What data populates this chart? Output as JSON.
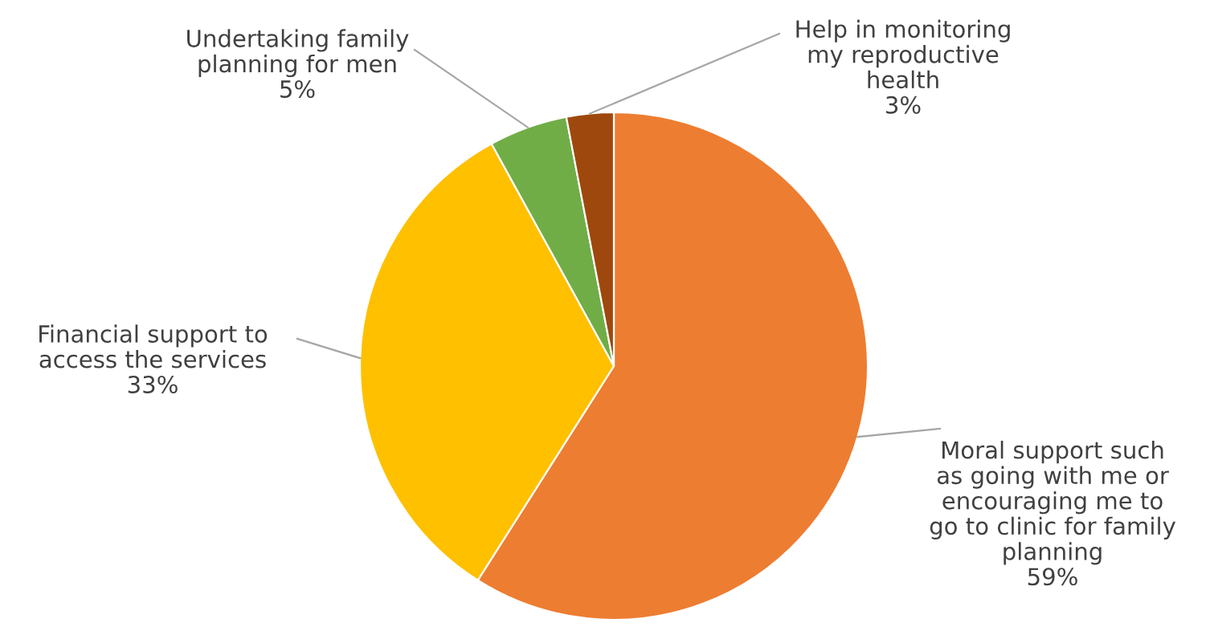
{
  "chart_data": {
    "type": "pie",
    "categories": [
      "Moral support such\nas going with me or\nencouraging me to\ngo to clinic for family\nplanning",
      "Financial support to\naccess the services",
      "Undertaking family\nplanning for men",
      "Help in monitoring\nmy reproductive\nhealth"
    ],
    "values": [
      59,
      33,
      5,
      3
    ],
    "value_labels": [
      "59%",
      "33%",
      "5%",
      "3%"
    ],
    "colors": [
      "#ed7d31",
      "#ffc000",
      "#70ad47",
      "#9e480e"
    ]
  }
}
